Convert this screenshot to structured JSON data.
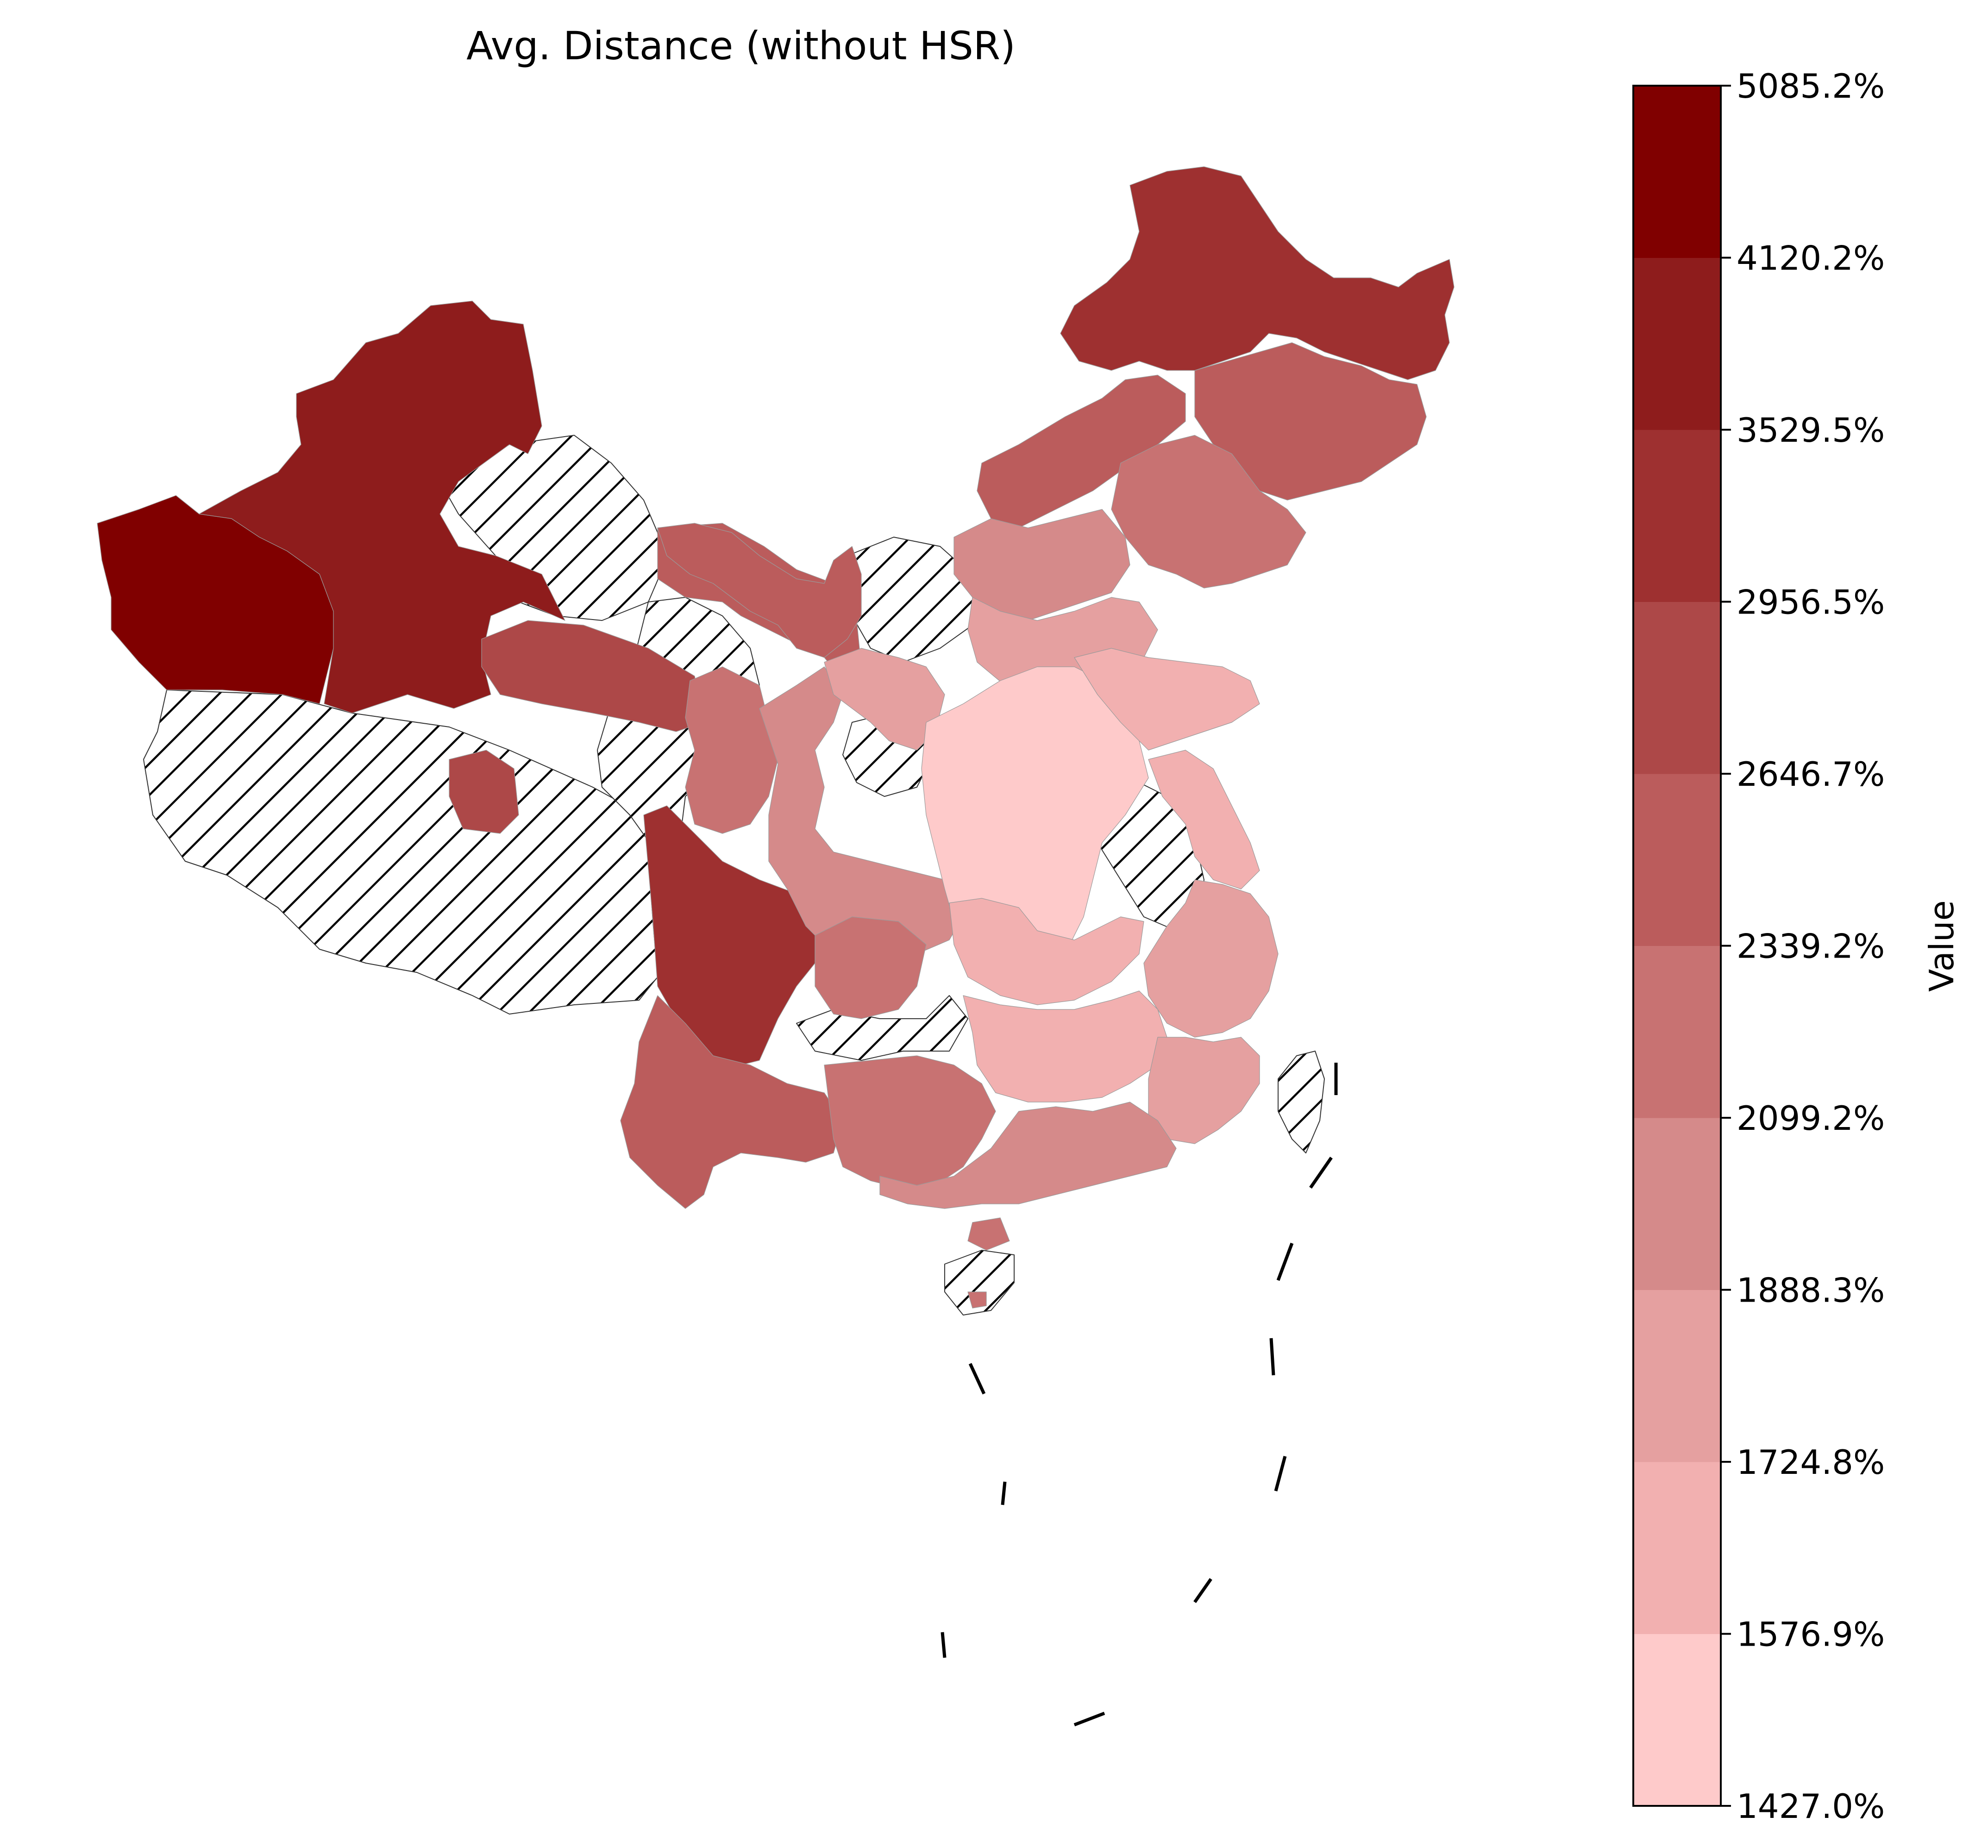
{
  "map": {
    "title": "Avg. Distance (without HSR)",
    "no_data_pattern": "diagonal-hatch"
  },
  "colorbar": {
    "label": "Value",
    "ticks": [
      "5085.2%",
      "4120.2%",
      "3529.5%",
      "2956.5%",
      "2646.7%",
      "2339.2%",
      "2099.2%",
      "1888.3%",
      "1724.8%",
      "1576.9%",
      "1427.0%"
    ],
    "bins_bottom_to_top": [
      "#fecaca",
      "#f2b0b0",
      "#e5a0a0",
      "#d58a8a",
      "#c87272",
      "#bb5c5c",
      "#ad4848",
      "#9e3030",
      "#8e1c1c",
      "#800000"
    ]
  },
  "legend_colors": {
    "bin1": "#fecaca",
    "bin2": "#f2b0b0",
    "bin3": "#e5a0a0",
    "bin4": "#d58a8a",
    "bin5": "#c87272",
    "bin6": "#bb5c5c",
    "bin7": "#ad4848",
    "bin8": "#9e3030",
    "bin9": "#8e1c1c",
    "bin10": "#800000"
  }
}
